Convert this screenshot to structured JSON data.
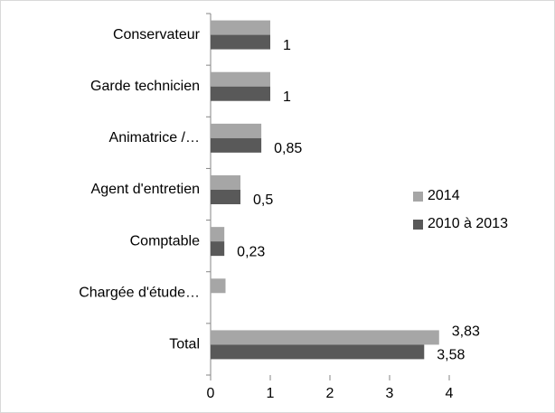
{
  "chart_data": {
    "type": "bar",
    "orientation": "horizontal",
    "categories": [
      "Conservateur",
      "Garde technicien",
      "Animatrice /…",
      "Agent d'entretien",
      "Comptable",
      "Chargée d'étude…",
      "Total"
    ],
    "series": [
      {
        "name": "2014",
        "color": "#a6a6a6",
        "values": [
          1,
          1,
          0.85,
          0.5,
          0.23,
          0.25,
          3.83
        ],
        "value_labels": [
          null,
          null,
          null,
          null,
          null,
          null,
          "3,83"
        ]
      },
      {
        "name": "2010 à 2013",
        "color": "#595959",
        "values": [
          1,
          1,
          0.85,
          0.5,
          0.23,
          null,
          3.58
        ],
        "value_labels": [
          "1",
          "1",
          "0,85",
          "0,5",
          "0,23",
          null,
          "3,58"
        ]
      }
    ],
    "xlim": [
      0,
      4
    ],
    "xticks": [
      0,
      1,
      2,
      3,
      4
    ],
    "grid": false,
    "legend": "right"
  }
}
